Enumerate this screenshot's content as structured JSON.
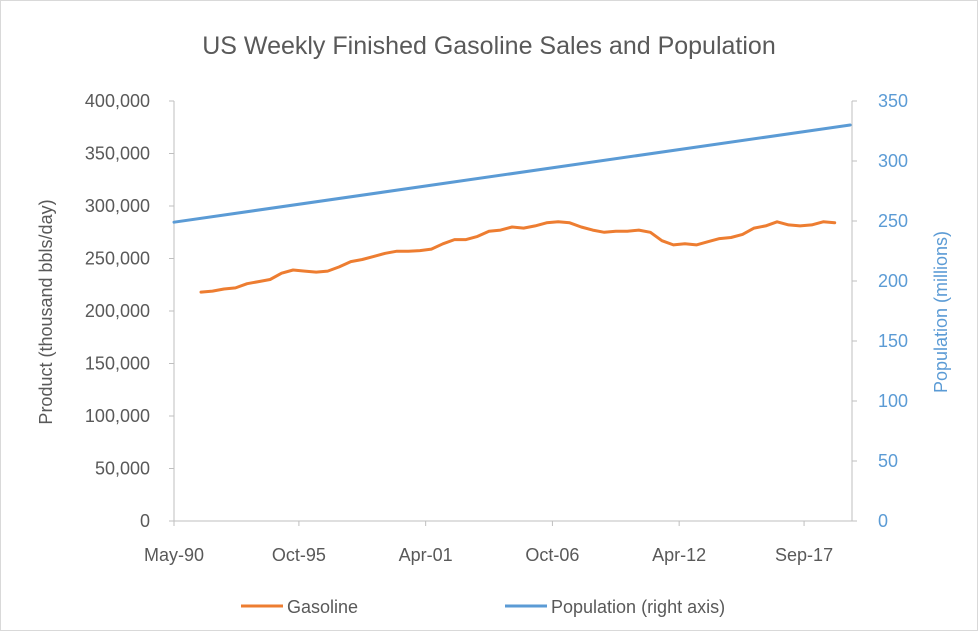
{
  "chart_data": {
    "type": "line",
    "title": "US Weekly Finished Gasoline Sales and Population",
    "xlabel": "",
    "x_tick_labels": [
      "May-90",
      "Oct-95",
      "Apr-01",
      "Oct-06",
      "Apr-12",
      "Sep-17"
    ],
    "x_tick_years": [
      1990.33,
      1995.75,
      2001.25,
      2006.75,
      2012.25,
      2017.67
    ],
    "xlim": [
      1990.33,
      2019.75
    ],
    "y_left": {
      "label": "Product (thousand bbls/day)",
      "lim": [
        0,
        400000
      ],
      "ticks": [
        "0",
        "50,000",
        "100,000",
        "150,000",
        "200,000",
        "250,000",
        "300,000",
        "350,000",
        "400,000"
      ]
    },
    "y_right": {
      "label": "Population (millions)",
      "lim": [
        0,
        350
      ],
      "ticks": [
        "0",
        "50",
        "100",
        "150",
        "200",
        "250",
        "300",
        "350"
      ]
    },
    "series": [
      {
        "name": "Gasoline",
        "axis": "left",
        "color": "#ed7d31",
        "x": [
          1991.5,
          1992.0,
          1992.5,
          1993.0,
          1993.5,
          1994.0,
          1994.5,
          1995.0,
          1995.5,
          1996.0,
          1996.5,
          1997.0,
          1997.5,
          1998.0,
          1998.5,
          1999.0,
          1999.5,
          2000.0,
          2000.5,
          2001.0,
          2001.5,
          2002.0,
          2002.5,
          2003.0,
          2003.5,
          2004.0,
          2004.5,
          2005.0,
          2005.5,
          2006.0,
          2006.5,
          2007.0,
          2007.5,
          2008.0,
          2008.5,
          2009.0,
          2009.5,
          2010.0,
          2010.5,
          2011.0,
          2011.5,
          2012.0,
          2012.5,
          2013.0,
          2013.5,
          2014.0,
          2014.5,
          2015.0,
          2015.5,
          2016.0,
          2016.5,
          2017.0,
          2017.5,
          2018.0,
          2018.5,
          2019.0
        ],
        "values": [
          218000,
          219000,
          221000,
          222000,
          226000,
          228000,
          230000,
          236000,
          239000,
          238000,
          237000,
          238000,
          242000,
          247000,
          249000,
          252000,
          255000,
          257000,
          257000,
          257500,
          259000,
          264000,
          268000,
          268000,
          271000,
          276000,
          277000,
          280000,
          279000,
          281000,
          284000,
          285000,
          284000,
          280000,
          277000,
          275000,
          276000,
          276000,
          277000,
          275000,
          267000,
          263000,
          264000,
          263000,
          266000,
          269000,
          270000,
          273000,
          279000,
          281000,
          285000,
          282000,
          281000,
          282000,
          285000,
          284000
        ]
      },
      {
        "name": "Population (right axis)",
        "axis": "right",
        "color": "#5b9bd5",
        "x": [
          1990.33,
          2019.67
        ],
        "values": [
          249,
          330
        ]
      }
    ],
    "grid": false,
    "legend_position": "bottom"
  }
}
